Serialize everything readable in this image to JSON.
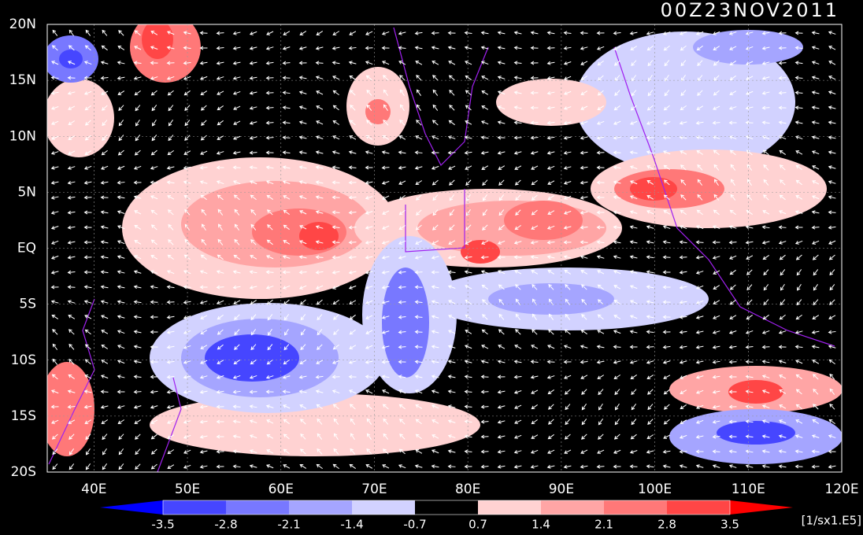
{
  "title": "00Z23NOV2011",
  "map": {
    "lon_range": [
      35,
      120
    ],
    "lat_range": [
      -20,
      20
    ],
    "x_ticks": [
      {
        "value": 40,
        "label": "40E"
      },
      {
        "value": 50,
        "label": "50E"
      },
      {
        "value": 60,
        "label": "60E"
      },
      {
        "value": 70,
        "label": "70E"
      },
      {
        "value": 80,
        "label": "80E"
      },
      {
        "value": 90,
        "label": "90E"
      },
      {
        "value": 100,
        "label": "100E"
      },
      {
        "value": 110,
        "label": "110E"
      },
      {
        "value": 120,
        "label": "120E"
      }
    ],
    "y_ticks": [
      {
        "value": 20,
        "label": "20N"
      },
      {
        "value": 15,
        "label": "15N"
      },
      {
        "value": 10,
        "label": "10N"
      },
      {
        "value": 5,
        "label": "5N"
      },
      {
        "value": 0,
        "label": "EQ"
      },
      {
        "value": -5,
        "label": "5S"
      },
      {
        "value": -10,
        "label": "10S"
      },
      {
        "value": -15,
        "label": "15S"
      },
      {
        "value": -20,
        "label": "20S"
      }
    ]
  },
  "colorbar": {
    "levels": [
      -3.5,
      -2.8,
      -2.1,
      -1.4,
      -0.7,
      0.7,
      1.4,
      2.1,
      2.8,
      3.5
    ],
    "colors": [
      "#0000ff",
      "#4646ff",
      "#7878ff",
      "#a5a5ff",
      "#d2d2ff",
      "#000000",
      "#ffd2d2",
      "#ffa5a5",
      "#ff7878",
      "#ff4646",
      "#ff0000"
    ],
    "unit": "[1/sx1.E5]"
  }
}
